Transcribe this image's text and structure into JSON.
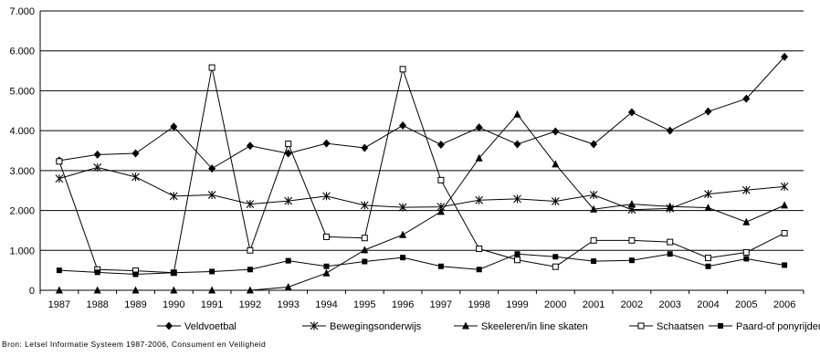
{
  "source_note": "Bron: Letsel Informatie Systeem 1987-2006, Consument en Veiligheid",
  "chart_data": {
    "type": "line",
    "title": "",
    "xlabel": "",
    "ylabel": "",
    "ylim": [
      0,
      7000
    ],
    "yticks": [
      0,
      1000,
      2000,
      3000,
      4000,
      5000,
      6000,
      7000
    ],
    "ytick_labels": [
      "0",
      "1.000",
      "2.000",
      "3.000",
      "4.000",
      "5.000",
      "6.000",
      "7.000"
    ],
    "grid": "horizontal",
    "legend_position": "bottom",
    "categories": [
      "1987",
      "1988",
      "1989",
      "1990",
      "1991",
      "1992",
      "1993",
      "1994",
      "1995",
      "1996",
      "1997",
      "1998",
      "1999",
      "2000",
      "2001",
      "2002",
      "2003",
      "2004",
      "2005",
      "2006"
    ],
    "series": [
      {
        "name": "Veldvoetbal",
        "marker": "diamond-filled",
        "color": "#000000",
        "values": [
          3250,
          3400,
          3430,
          4100,
          3050,
          3620,
          3430,
          3680,
          3570,
          4130,
          3650,
          4080,
          3660,
          3980,
          3660,
          4460,
          4000,
          4480,
          4800,
          5850
        ]
      },
      {
        "name": "Bewegingsonderwijs",
        "marker": "asterisk",
        "color": "#000000",
        "values": [
          2800,
          3080,
          2840,
          2360,
          2390,
          2160,
          2240,
          2360,
          2130,
          2080,
          2090,
          2260,
          2290,
          2230,
          2390,
          2020,
          2050,
          2410,
          2510,
          2600
        ]
      },
      {
        "name": "Skeeleren/in line skaten",
        "marker": "triangle-filled",
        "color": "#000000",
        "values": [
          0,
          0,
          0,
          0,
          0,
          0,
          80,
          430,
          1010,
          1390,
          1970,
          3310,
          4410,
          3160,
          2030,
          2160,
          2100,
          2070,
          1710,
          2130
        ]
      },
      {
        "name": "Schaatsen",
        "marker": "square-open",
        "color": "#000000",
        "values": [
          3230,
          520,
          490,
          440,
          5580,
          1000,
          3670,
          1340,
          1310,
          5540,
          2760,
          1040,
          760,
          590,
          1250,
          1250,
          1210,
          810,
          950,
          1430
        ]
      },
      {
        "name": "Paard-of ponyrijden",
        "marker": "square-filled",
        "color": "#000000",
        "values": [
          500,
          450,
          400,
          440,
          470,
          520,
          740,
          600,
          720,
          820,
          600,
          520,
          910,
          840,
          730,
          750,
          910,
          600,
          790,
          630
        ]
      }
    ]
  }
}
